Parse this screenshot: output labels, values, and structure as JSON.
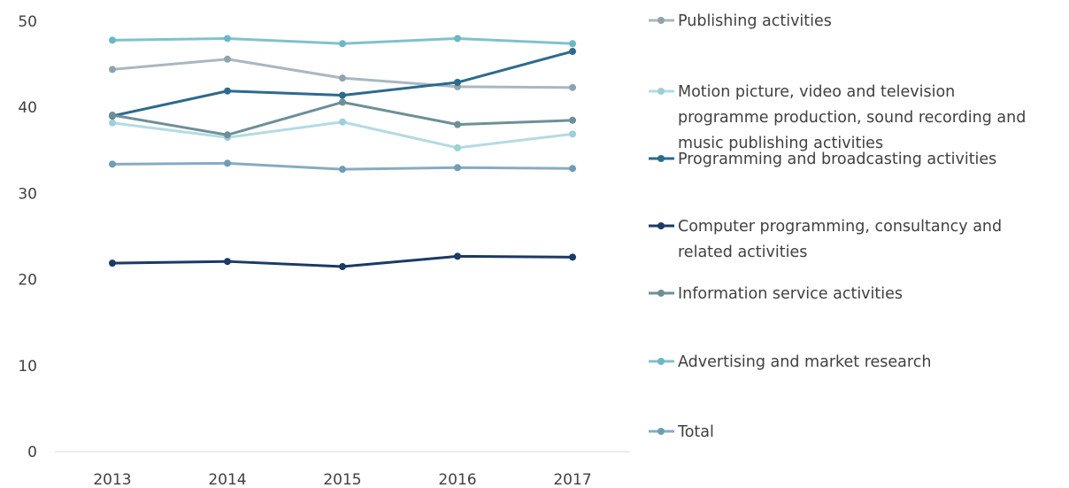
{
  "chart_data": {
    "type": "line",
    "title": "",
    "xlabel": "",
    "ylabel": "",
    "categories": [
      "2013",
      "2014",
      "2015",
      "2016",
      "2017"
    ],
    "ylim": [
      0,
      50
    ],
    "yticks": [
      0,
      10,
      20,
      30,
      40,
      50
    ],
    "grid": false,
    "legend_position": "right",
    "series": [
      {
        "name": "Publishing activities",
        "color": "#a9b7c1",
        "marker_color": "#8fa3ad",
        "values": [
          44.4,
          45.6,
          43.4,
          42.4,
          42.3
        ]
      },
      {
        "name": "Motion picture, video and television programme production, sound recording and music publishing activities",
        "color": "#b3dbe3",
        "marker_color": "#9ccfd8",
        "values": [
          38.2,
          36.5,
          38.3,
          35.3,
          36.9
        ]
      },
      {
        "name": "Programming and broadcasting activities",
        "color": "#2d6a8f",
        "marker_color": "#2d6a8f",
        "values": [
          39.0,
          41.9,
          41.4,
          42.9,
          46.5
        ]
      },
      {
        "name": "Computer programming, consultancy and related activities",
        "color": "#1b3a64",
        "marker_color": "#1b3a64",
        "values": [
          21.9,
          22.1,
          21.5,
          22.7,
          22.6
        ]
      },
      {
        "name": "Information service activities",
        "color": "#6e8f99",
        "marker_color": "#6e8f99",
        "values": [
          39.1,
          36.8,
          40.6,
          38.0,
          38.5
        ]
      },
      {
        "name": "Advertising and market research",
        "color": "#7fc2cc",
        "marker_color": "#6bb8c3",
        "values": [
          47.8,
          48.0,
          47.4,
          48.0,
          47.4
        ]
      },
      {
        "name": "Total",
        "color": "#88abc1",
        "marker_color": "#6f9cb6",
        "values": [
          33.4,
          33.5,
          32.8,
          33.0,
          32.9
        ]
      }
    ],
    "legend_lines": [
      [
        "Publishing activities"
      ],
      [
        "Motion picture, video and television",
        "programme production, sound recording and",
        "music publishing activities"
      ],
      [
        "Programming and broadcasting activities"
      ],
      [
        "Computer programming, consultancy and",
        "related activities"
      ],
      [
        "Information service activities"
      ],
      [
        "Advertising and market research"
      ],
      [
        "Total"
      ]
    ]
  }
}
